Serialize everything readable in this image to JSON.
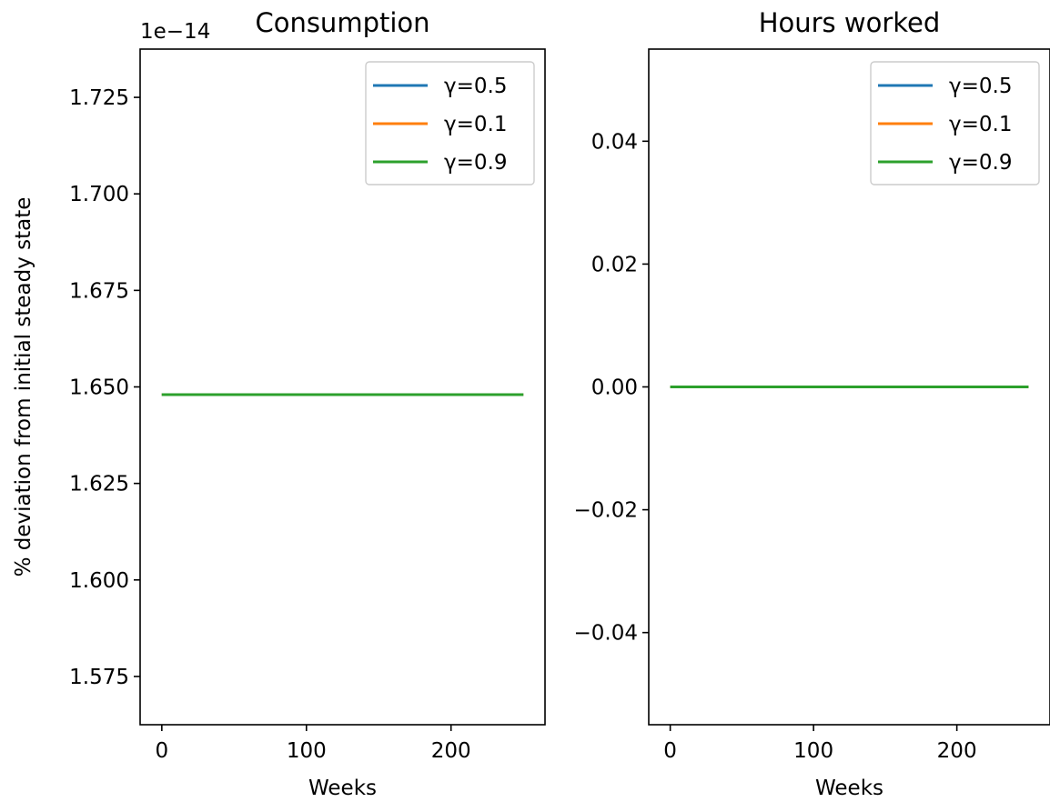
{
  "chart_data": [
    {
      "type": "line",
      "title": "Consumption",
      "xlabel": "Weeks",
      "ylabel": "% deviation from initial steady state",
      "y_offset_text": "1e−14",
      "xlim": [
        -15,
        265
      ],
      "ylim": [
        1.5625,
        1.7375
      ],
      "xticks": [
        0,
        100,
        200
      ],
      "xtick_labels": [
        "0",
        "100",
        "200"
      ],
      "yticks": [
        1.575,
        1.6,
        1.625,
        1.65,
        1.675,
        1.7,
        1.725
      ],
      "ytick_labels": [
        "1.575",
        "1.600",
        "1.625",
        "1.650",
        "1.675",
        "1.700",
        "1.725"
      ],
      "grid": false,
      "legend_position": "upper right",
      "series": [
        {
          "name": "γ=0.5",
          "color": "#1f77b4",
          "x": [
            0,
            250
          ],
          "y": [
            1.648,
            1.648
          ]
        },
        {
          "name": "γ=0.1",
          "color": "#ff7f0e",
          "x": [
            0,
            250
          ],
          "y": [
            1.648,
            1.648
          ]
        },
        {
          "name": "γ=0.9",
          "color": "#2ca02c",
          "x": [
            0,
            250
          ],
          "y": [
            1.648,
            1.648
          ]
        }
      ]
    },
    {
      "type": "line",
      "title": "Hours worked",
      "xlabel": "Weeks",
      "ylabel": "",
      "y_offset_text": "",
      "xlim": [
        -15,
        265
      ],
      "ylim": [
        -0.055,
        0.055
      ],
      "xticks": [
        0,
        100,
        200
      ],
      "xtick_labels": [
        "0",
        "100",
        "200"
      ],
      "yticks": [
        -0.04,
        -0.02,
        0.0,
        0.02,
        0.04
      ],
      "ytick_labels": [
        "−0.04",
        "−0.02",
        "0.00",
        "0.02",
        "0.04"
      ],
      "grid": false,
      "legend_position": "upper right",
      "series": [
        {
          "name": "γ=0.5",
          "color": "#1f77b4",
          "x": [
            0,
            250
          ],
          "y": [
            0,
            0
          ]
        },
        {
          "name": "γ=0.1",
          "color": "#ff7f0e",
          "x": [
            0,
            250
          ],
          "y": [
            0,
            0
          ]
        },
        {
          "name": "γ=0.9",
          "color": "#2ca02c",
          "x": [
            0,
            250
          ],
          "y": [
            0,
            0
          ]
        }
      ]
    }
  ]
}
